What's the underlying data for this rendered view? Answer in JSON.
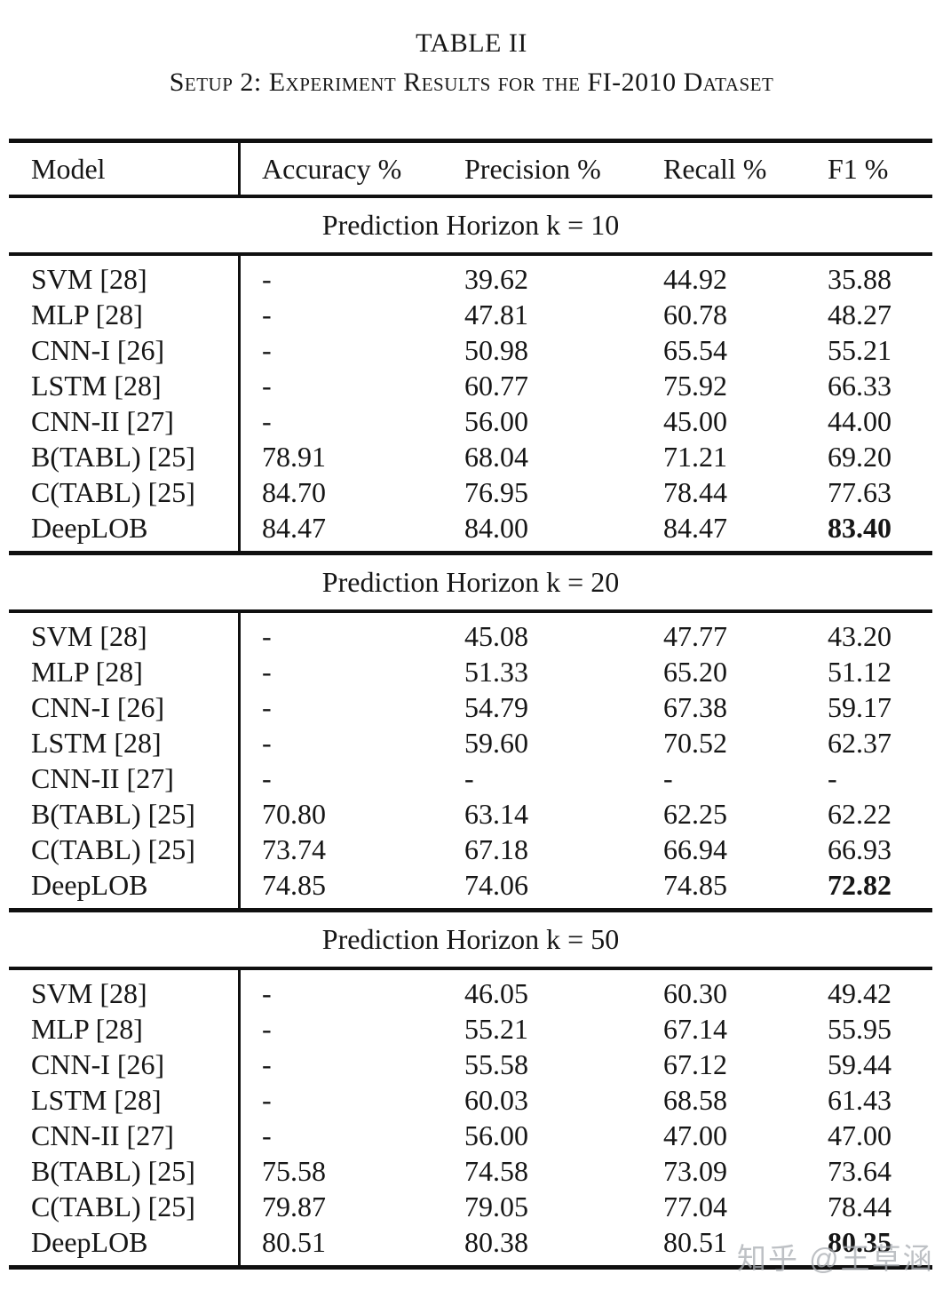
{
  "title": "TABLE II",
  "subtitle": "Setup 2: Experiment Results for the FI-2010 Dataset",
  "columns": [
    "Model",
    "Accuracy %",
    "Precision %",
    "Recall %",
    "F1 %"
  ],
  "sections": [
    {
      "heading": "Prediction Horizon k = 10",
      "rows": [
        {
          "model": "SVM [28]",
          "accuracy": "-",
          "precision": "39.62",
          "recall": "44.92",
          "f1": "35.88",
          "f1_bold": false
        },
        {
          "model": "MLP [28]",
          "accuracy": "-",
          "precision": "47.81",
          "recall": "60.78",
          "f1": "48.27",
          "f1_bold": false
        },
        {
          "model": "CNN-I [26]",
          "accuracy": "-",
          "precision": "50.98",
          "recall": "65.54",
          "f1": "55.21",
          "f1_bold": false
        },
        {
          "model": "LSTM [28]",
          "accuracy": "-",
          "precision": "60.77",
          "recall": "75.92",
          "f1": "66.33",
          "f1_bold": false
        },
        {
          "model": "CNN-II [27]",
          "accuracy": "-",
          "precision": "56.00",
          "recall": "45.00",
          "f1": "44.00",
          "f1_bold": false
        },
        {
          "model": "B(TABL) [25]",
          "accuracy": "78.91",
          "precision": "68.04",
          "recall": "71.21",
          "f1": "69.20",
          "f1_bold": false
        },
        {
          "model": "C(TABL) [25]",
          "accuracy": "84.70",
          "precision": "76.95",
          "recall": "78.44",
          "f1": "77.63",
          "f1_bold": false
        },
        {
          "model": "DeepLOB",
          "accuracy": "84.47",
          "precision": "84.00",
          "recall": "84.47",
          "f1": "83.40",
          "f1_bold": true
        }
      ]
    },
    {
      "heading": "Prediction Horizon k = 20",
      "rows": [
        {
          "model": "SVM [28]",
          "accuracy": "-",
          "precision": "45.08",
          "recall": "47.77",
          "f1": "43.20",
          "f1_bold": false
        },
        {
          "model": "MLP [28]",
          "accuracy": "-",
          "precision": "51.33",
          "recall": "65.20",
          "f1": "51.12",
          "f1_bold": false
        },
        {
          "model": "CNN-I [26]",
          "accuracy": "-",
          "precision": "54.79",
          "recall": "67.38",
          "f1": "59.17",
          "f1_bold": false
        },
        {
          "model": "LSTM [28]",
          "accuracy": "-",
          "precision": "59.60",
          "recall": "70.52",
          "f1": "62.37",
          "f1_bold": false
        },
        {
          "model": "CNN-II [27]",
          "accuracy": "-",
          "precision": "-",
          "recall": "-",
          "f1": "-",
          "f1_bold": false
        },
        {
          "model": "B(TABL) [25]",
          "accuracy": "70.80",
          "precision": "63.14",
          "recall": "62.25",
          "f1": "62.22",
          "f1_bold": false
        },
        {
          "model": "C(TABL) [25]",
          "accuracy": "73.74",
          "precision": "67.18",
          "recall": "66.94",
          "f1": "66.93",
          "f1_bold": false
        },
        {
          "model": "DeepLOB",
          "accuracy": "74.85",
          "precision": "74.06",
          "recall": "74.85",
          "f1": "72.82",
          "f1_bold": true
        }
      ]
    },
    {
      "heading": "Prediction Horizon k = 50",
      "rows": [
        {
          "model": "SVM [28]",
          "accuracy": "-",
          "precision": "46.05",
          "recall": "60.30",
          "f1": "49.42",
          "f1_bold": false
        },
        {
          "model": "MLP [28]",
          "accuracy": "-",
          "precision": "55.21",
          "recall": "67.14",
          "f1": "55.95",
          "f1_bold": false
        },
        {
          "model": "CNN-I [26]",
          "accuracy": "-",
          "precision": "55.58",
          "recall": "67.12",
          "f1": "59.44",
          "f1_bold": false
        },
        {
          "model": "LSTM [28]",
          "accuracy": "-",
          "precision": "60.03",
          "recall": "68.58",
          "f1": "61.43",
          "f1_bold": false
        },
        {
          "model": "CNN-II [27]",
          "accuracy": "-",
          "precision": "56.00",
          "recall": "47.00",
          "f1": "47.00",
          "f1_bold": false
        },
        {
          "model": "B(TABL) [25]",
          "accuracy": "75.58",
          "precision": "74.58",
          "recall": "73.09",
          "f1": "73.64",
          "f1_bold": false
        },
        {
          "model": "C(TABL) [25]",
          "accuracy": "79.87",
          "precision": "79.05",
          "recall": "77.04",
          "f1": "78.44",
          "f1_bold": false
        },
        {
          "model": "DeepLOB",
          "accuracy": "80.51",
          "precision": "80.38",
          "recall": "80.51",
          "f1": "80.35",
          "f1_bold": true
        }
      ]
    }
  ],
  "watermark": "知乎 @王草涵",
  "colors": {
    "text": "#161616",
    "rule": "#101010",
    "watermark": "#a9adb2",
    "background": "#ffffff"
  }
}
